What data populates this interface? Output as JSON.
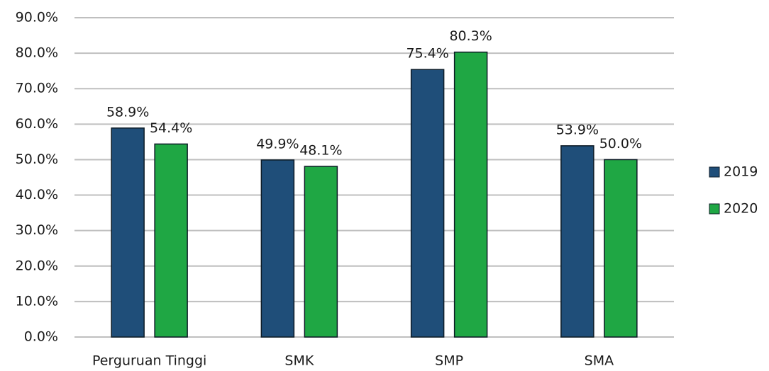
{
  "chart_data": {
    "type": "bar",
    "categories": [
      "Perguruan Tinggi",
      "SMK",
      "SMP",
      "SMA"
    ],
    "series": [
      {
        "name": "2019",
        "color": "#1f4e79",
        "values": [
          58.9,
          49.9,
          75.4,
          53.9
        ],
        "value_labels": [
          "58.9%",
          "49.9%",
          "75.4%",
          "53.9%"
        ]
      },
      {
        "name": "2020",
        "color": "#1fa744",
        "values": [
          54.4,
          48.1,
          80.3,
          50.0
        ],
        "value_labels": [
          "54.4%",
          "48.1%",
          "80.3%",
          "50.0%"
        ]
      }
    ],
    "ylim": [
      0,
      90
    ],
    "yticks": [
      {
        "value": 0,
        "label": "0.0%"
      },
      {
        "value": 10,
        "label": "10.0%"
      },
      {
        "value": 20,
        "label": "20.0%"
      },
      {
        "value": 30,
        "label": "30.0%"
      },
      {
        "value": 40,
        "label": "40.0%"
      },
      {
        "value": 50,
        "label": "50.0%"
      },
      {
        "value": 60,
        "label": "60.0%"
      },
      {
        "value": 70,
        "label": "70.0%"
      },
      {
        "value": 80,
        "label": "80.0%"
      },
      {
        "value": 90,
        "label": "90.0%"
      }
    ],
    "grid": true,
    "legend": "right"
  }
}
